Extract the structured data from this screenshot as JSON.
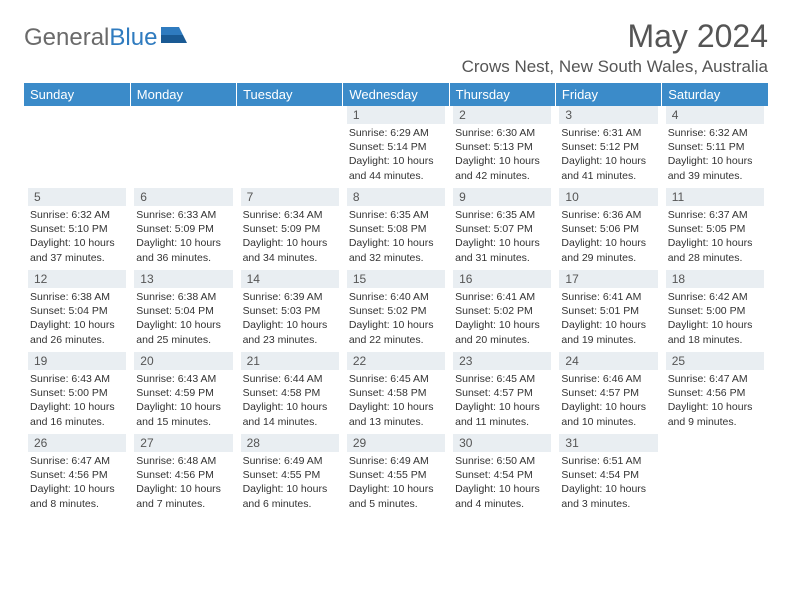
{
  "logo": {
    "text_gray": "General",
    "text_blue": "Blue"
  },
  "header": {
    "month_title": "May 2024",
    "location": "Crows Nest, New South Wales, Australia"
  },
  "calendar": {
    "background_color": "#ffffff",
    "header_bg": "#3b8bc9",
    "header_text_color": "#ffffff",
    "daynum_bg": "#e9eef2",
    "body_font_size": 10.5,
    "dow_labels": [
      "Sunday",
      "Monday",
      "Tuesday",
      "Wednesday",
      "Thursday",
      "Friday",
      "Saturday"
    ],
    "first_weekday_index": 3,
    "days": [
      {
        "n": 1,
        "sunrise": "6:29 AM",
        "sunset": "5:14 PM",
        "daylight": "10 hours and 44 minutes."
      },
      {
        "n": 2,
        "sunrise": "6:30 AM",
        "sunset": "5:13 PM",
        "daylight": "10 hours and 42 minutes."
      },
      {
        "n": 3,
        "sunrise": "6:31 AM",
        "sunset": "5:12 PM",
        "daylight": "10 hours and 41 minutes."
      },
      {
        "n": 4,
        "sunrise": "6:32 AM",
        "sunset": "5:11 PM",
        "daylight": "10 hours and 39 minutes."
      },
      {
        "n": 5,
        "sunrise": "6:32 AM",
        "sunset": "5:10 PM",
        "daylight": "10 hours and 37 minutes."
      },
      {
        "n": 6,
        "sunrise": "6:33 AM",
        "sunset": "5:09 PM",
        "daylight": "10 hours and 36 minutes."
      },
      {
        "n": 7,
        "sunrise": "6:34 AM",
        "sunset": "5:09 PM",
        "daylight": "10 hours and 34 minutes."
      },
      {
        "n": 8,
        "sunrise": "6:35 AM",
        "sunset": "5:08 PM",
        "daylight": "10 hours and 32 minutes."
      },
      {
        "n": 9,
        "sunrise": "6:35 AM",
        "sunset": "5:07 PM",
        "daylight": "10 hours and 31 minutes."
      },
      {
        "n": 10,
        "sunrise": "6:36 AM",
        "sunset": "5:06 PM",
        "daylight": "10 hours and 29 minutes."
      },
      {
        "n": 11,
        "sunrise": "6:37 AM",
        "sunset": "5:05 PM",
        "daylight": "10 hours and 28 minutes."
      },
      {
        "n": 12,
        "sunrise": "6:38 AM",
        "sunset": "5:04 PM",
        "daylight": "10 hours and 26 minutes."
      },
      {
        "n": 13,
        "sunrise": "6:38 AM",
        "sunset": "5:04 PM",
        "daylight": "10 hours and 25 minutes."
      },
      {
        "n": 14,
        "sunrise": "6:39 AM",
        "sunset": "5:03 PM",
        "daylight": "10 hours and 23 minutes."
      },
      {
        "n": 15,
        "sunrise": "6:40 AM",
        "sunset": "5:02 PM",
        "daylight": "10 hours and 22 minutes."
      },
      {
        "n": 16,
        "sunrise": "6:41 AM",
        "sunset": "5:02 PM",
        "daylight": "10 hours and 20 minutes."
      },
      {
        "n": 17,
        "sunrise": "6:41 AM",
        "sunset": "5:01 PM",
        "daylight": "10 hours and 19 minutes."
      },
      {
        "n": 18,
        "sunrise": "6:42 AM",
        "sunset": "5:00 PM",
        "daylight": "10 hours and 18 minutes."
      },
      {
        "n": 19,
        "sunrise": "6:43 AM",
        "sunset": "5:00 PM",
        "daylight": "10 hours and 16 minutes."
      },
      {
        "n": 20,
        "sunrise": "6:43 AM",
        "sunset": "4:59 PM",
        "daylight": "10 hours and 15 minutes."
      },
      {
        "n": 21,
        "sunrise": "6:44 AM",
        "sunset": "4:58 PM",
        "daylight": "10 hours and 14 minutes."
      },
      {
        "n": 22,
        "sunrise": "6:45 AM",
        "sunset": "4:58 PM",
        "daylight": "10 hours and 13 minutes."
      },
      {
        "n": 23,
        "sunrise": "6:45 AM",
        "sunset": "4:57 PM",
        "daylight": "10 hours and 11 minutes."
      },
      {
        "n": 24,
        "sunrise": "6:46 AM",
        "sunset": "4:57 PM",
        "daylight": "10 hours and 10 minutes."
      },
      {
        "n": 25,
        "sunrise": "6:47 AM",
        "sunset": "4:56 PM",
        "daylight": "10 hours and 9 minutes."
      },
      {
        "n": 26,
        "sunrise": "6:47 AM",
        "sunset": "4:56 PM",
        "daylight": "10 hours and 8 minutes."
      },
      {
        "n": 27,
        "sunrise": "6:48 AM",
        "sunset": "4:56 PM",
        "daylight": "10 hours and 7 minutes."
      },
      {
        "n": 28,
        "sunrise": "6:49 AM",
        "sunset": "4:55 PM",
        "daylight": "10 hours and 6 minutes."
      },
      {
        "n": 29,
        "sunrise": "6:49 AM",
        "sunset": "4:55 PM",
        "daylight": "10 hours and 5 minutes."
      },
      {
        "n": 30,
        "sunrise": "6:50 AM",
        "sunset": "4:54 PM",
        "daylight": "10 hours and 4 minutes."
      },
      {
        "n": 31,
        "sunrise": "6:51 AM",
        "sunset": "4:54 PM",
        "daylight": "10 hours and 3 minutes."
      }
    ],
    "labels": {
      "sunrise_prefix": "Sunrise: ",
      "sunset_prefix": "Sunset: ",
      "daylight_prefix": "Daylight: "
    }
  }
}
